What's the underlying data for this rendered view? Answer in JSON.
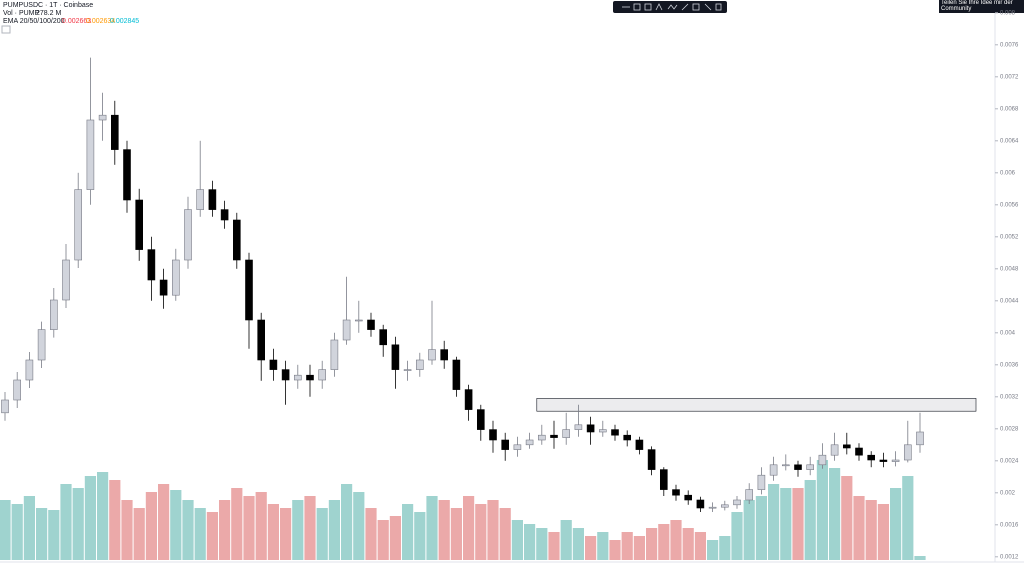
{
  "chart_data": {
    "type": "candlestick",
    "title": "PUMPUSDC · 1T · Coinbase",
    "volume_label": "Vol · PUMP",
    "volume_value": "278.2 M",
    "ema_label": "EMA 20/50/100/200",
    "ema_values": [
      {
        "label": "0.002663",
        "color": "#f23645"
      },
      {
        "label": "0.002634",
        "color": "#ff9800"
      },
      {
        "label": "0.002845",
        "color": "#00bcd4"
      }
    ],
    "tooltip": "Teilen Sie Ihre Idee mir der Community",
    "open": [
      0.003,
      0.00316,
      0.00341,
      0.00366,
      0.00404,
      0.00441,
      0.00491,
      0.00579,
      0.00666,
      0.00672,
      0.00629,
      0.00566,
      0.00504,
      0.00466,
      0.00447,
      0.00491,
      0.00554,
      0.00579,
      0.00554,
      0.00541,
      0.00491,
      0.00416,
      0.00366,
      0.00354,
      0.00341,
      0.00347,
      0.00341,
      0.00354,
      0.00391,
      0.00416,
      0.00416,
      0.00404,
      0.00385,
      0.00354,
      0.00354,
      0.00366,
      0.00379,
      0.00366,
      0.00329,
      0.00304,
      0.00279,
      0.00266,
      0.00254,
      0.0026,
      0.00266,
      0.00272,
      0.00269,
      0.00279,
      0.00285,
      0.00276,
      0.00279,
      0.00272,
      0.00266,
      0.00254,
      0.00229,
      0.00204,
      0.00197,
      0.00191,
      0.00181,
      0.00182,
      0.00185,
      0.00191,
      0.00204,
      0.00222,
      0.00235,
      0.00235,
      0.00229,
      0.00235,
      0.00247,
      0.0026,
      0.00256,
      0.00247,
      0.00241,
      0.00239,
      0.00241,
      0.0026
    ],
    "high": [
      0.00326,
      0.00351,
      0.00376,
      0.00414,
      0.00456,
      0.00511,
      0.006,
      0.00744,
      0.007,
      0.0069,
      0.0064,
      0.0058,
      0.0052,
      0.0048,
      0.00505,
      0.0057,
      0.0064,
      0.0059,
      0.00565,
      0.0055,
      0.005,
      0.00425,
      0.0038,
      0.00365,
      0.0036,
      0.0036,
      0.00365,
      0.004,
      0.0047,
      0.0044,
      0.00425,
      0.0041,
      0.00395,
      0.00365,
      0.00375,
      0.0044,
      0.0039,
      0.0037,
      0.00335,
      0.0031,
      0.0029,
      0.00275,
      0.0027,
      0.00275,
      0.00285,
      0.0029,
      0.003,
      0.0031,
      0.00295,
      0.0029,
      0.00285,
      0.00278,
      0.0027,
      0.00258,
      0.00232,
      0.0021,
      0.00203,
      0.00195,
      0.00188,
      0.0019,
      0.00196,
      0.00212,
      0.00232,
      0.00245,
      0.00248,
      0.0024,
      0.00245,
      0.00262,
      0.00275,
      0.00275,
      0.00262,
      0.00252,
      0.0025,
      0.00252,
      0.0029,
      0.003
    ],
    "low": [
      0.0029,
      0.00306,
      0.00331,
      0.00356,
      0.00394,
      0.00431,
      0.00481,
      0.0056,
      0.0064,
      0.0061,
      0.0055,
      0.0049,
      0.0044,
      0.0043,
      0.0044,
      0.0048,
      0.00545,
      0.00545,
      0.0053,
      0.0048,
      0.0038,
      0.0034,
      0.0034,
      0.0031,
      0.0033,
      0.0032,
      0.0033,
      0.00345,
      0.00385,
      0.004,
      0.00395,
      0.0037,
      0.0033,
      0.0034,
      0.00345,
      0.0036,
      0.00355,
      0.0032,
      0.0029,
      0.00265,
      0.0025,
      0.0024,
      0.00245,
      0.00255,
      0.0026,
      0.00255,
      0.0026,
      0.0027,
      0.0026,
      0.0027,
      0.00265,
      0.00258,
      0.00248,
      0.00222,
      0.00196,
      0.0019,
      0.00185,
      0.00176,
      0.00176,
      0.00178,
      0.0018,
      0.00186,
      0.00198,
      0.00215,
      0.00228,
      0.0022,
      0.00222,
      0.0023,
      0.0024,
      0.00248,
      0.0024,
      0.00232,
      0.00232,
      0.00233,
      0.00238,
      0.0025
    ],
    "close": [
      0.00316,
      0.00341,
      0.00366,
      0.00404,
      0.00441,
      0.00491,
      0.00579,
      0.00666,
      0.00672,
      0.00629,
      0.00566,
      0.00504,
      0.00466,
      0.00447,
      0.00491,
      0.00554,
      0.00579,
      0.00554,
      0.00541,
      0.00491,
      0.00416,
      0.00366,
      0.00354,
      0.00341,
      0.00347,
      0.00341,
      0.00354,
      0.00391,
      0.00416,
      0.00416,
      0.00404,
      0.00385,
      0.00354,
      0.00354,
      0.00366,
      0.00379,
      0.00366,
      0.00329,
      0.00304,
      0.00279,
      0.00266,
      0.00254,
      0.0026,
      0.00266,
      0.00272,
      0.00269,
      0.00279,
      0.00285,
      0.00276,
      0.00279,
      0.00272,
      0.00266,
      0.00254,
      0.00229,
      0.00204,
      0.00197,
      0.00191,
      0.00181,
      0.00182,
      0.00185,
      0.00191,
      0.00204,
      0.00222,
      0.00235,
      0.00235,
      0.00229,
      0.00235,
      0.00247,
      0.0026,
      0.00256,
      0.00247,
      0.00241,
      0.00239,
      0.00241,
      0.0026,
      0.00276
    ],
    "volume": [
      300,
      280,
      320,
      260,
      250,
      380,
      360,
      420,
      440,
      400,
      300,
      260,
      340,
      380,
      350,
      300,
      260,
      240,
      300,
      360,
      320,
      340,
      280,
      260,
      300,
      320,
      260,
      300,
      380,
      340,
      260,
      200,
      220,
      280,
      240,
      320,
      300,
      260,
      320,
      280,
      300,
      260,
      200,
      180,
      160,
      140,
      200,
      160,
      120,
      140,
      100,
      140,
      120,
      160,
      180,
      200,
      160,
      140,
      100,
      120,
      240,
      300,
      320,
      380,
      360,
      360,
      400,
      500,
      460,
      420,
      320,
      300,
      280,
      360,
      420,
      20
    ],
    "up_color": "#d1d4dc",
    "down_color": "#000000",
    "volume_up_color": "#9fd3cf",
    "volume_down_color": "#eba9a9",
    "resistance_zone": [
      0.00302,
      0.00318
    ],
    "ylim": [
      0.00116,
      0.00816
    ],
    "yticks": [
      0.0012,
      0.0016,
      0.002,
      0.0024,
      0.0028,
      0.0032,
      0.0036,
      0.004,
      0.0044,
      0.0048,
      0.0052,
      0.0056,
      0.006,
      0.0064,
      0.0068,
      0.0072,
      0.0076,
      0.008
    ],
    "grid": false
  }
}
